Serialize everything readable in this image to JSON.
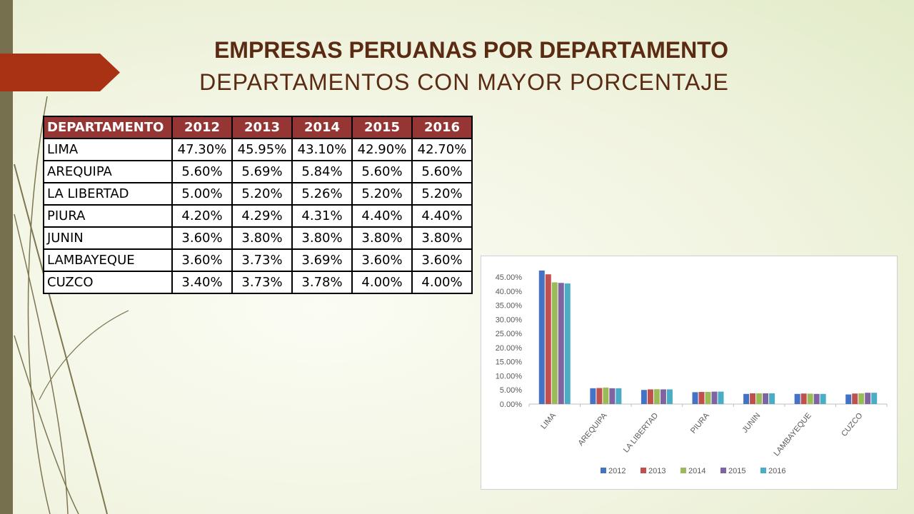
{
  "slide": {
    "title_line1": "EMPRESAS PERUANAS POR DEPARTAMENTO",
    "title_line2": "DEPARTAMENTOS CON MAYOR PORCENTAJE",
    "accent_color": "#a93114",
    "title_color": "#5a2a13"
  },
  "table": {
    "headers": [
      "DEPARTAMENTO",
      "2012",
      "2013",
      "2014",
      "2015",
      "2016"
    ],
    "header_color": "#963634",
    "rows": [
      [
        "LIMA",
        "47.30%",
        "45.95%",
        "43.10%",
        "42.90%",
        "42.70%"
      ],
      [
        "AREQUIPA",
        "5.60%",
        "5.69%",
        "5.84%",
        "5.60%",
        "5.60%"
      ],
      [
        "LA LIBERTAD",
        "5.00%",
        "5.20%",
        "5.26%",
        "5.20%",
        "5.20%"
      ],
      [
        "PIURA",
        "4.20%",
        "4.29%",
        "4.31%",
        "4.40%",
        "4.40%"
      ],
      [
        "JUNIN",
        "3.60%",
        "3.80%",
        "3.80%",
        "3.80%",
        "3.80%"
      ],
      [
        "LAMBAYEQUE",
        "3.60%",
        "3.73%",
        "3.69%",
        "3.60%",
        "3.60%"
      ],
      [
        "CUZCO",
        "3.40%",
        "3.73%",
        "3.78%",
        "4.00%",
        "4.00%"
      ]
    ]
  },
  "chart_data": {
    "type": "bar",
    "categories": [
      "LIMA",
      "AREQUIPA",
      "LA LIBERTAD",
      "PIURA",
      "JUNIN",
      "LAMBAYEQUE",
      "CUZCO"
    ],
    "series": [
      {
        "name": "2012",
        "color": "#4472c4",
        "values": [
          47.3,
          5.6,
          5.0,
          4.2,
          3.6,
          3.6,
          3.4
        ]
      },
      {
        "name": "2013",
        "color": "#c0504d",
        "values": [
          45.95,
          5.69,
          5.2,
          4.29,
          3.8,
          3.73,
          3.73
        ]
      },
      {
        "name": "2014",
        "color": "#9bbb59",
        "values": [
          43.1,
          5.84,
          5.26,
          4.31,
          3.8,
          3.69,
          3.78
        ]
      },
      {
        "name": "2015",
        "color": "#8064a2",
        "values": [
          42.9,
          5.6,
          5.2,
          4.4,
          3.8,
          3.6,
          4.0
        ]
      },
      {
        "name": "2016",
        "color": "#4bacc6",
        "values": [
          42.7,
          5.6,
          5.2,
          4.4,
          3.8,
          3.6,
          4.0
        ]
      }
    ],
    "y_ticks": [
      "0.00%",
      "5.00%",
      "10.00%",
      "15.00%",
      "20.00%",
      "25.00%",
      "30.00%",
      "35.00%",
      "40.00%",
      "45.00%"
    ],
    "ylim": [
      0,
      45
    ],
    "grid": false,
    "legend_position": "bottom",
    "title": "",
    "xlabel": "",
    "ylabel": ""
  }
}
